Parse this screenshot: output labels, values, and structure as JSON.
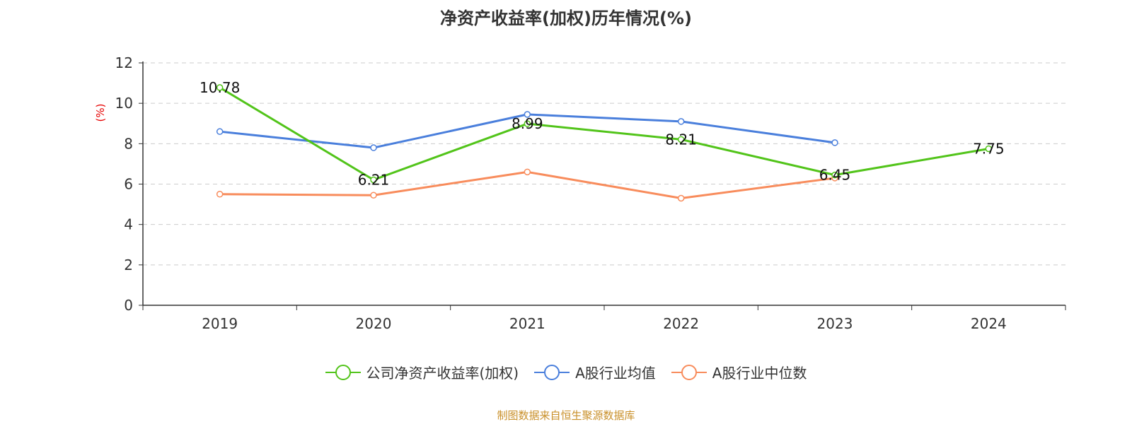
{
  "chart_data": {
    "type": "line",
    "title": "净资产收益率(加权)历年情况(%)",
    "ylabel": "(%)",
    "xlabel": "",
    "categories": [
      "2019",
      "2020",
      "2021",
      "2022",
      "2023",
      "2024"
    ],
    "ylim": [
      0,
      12
    ],
    "yticks": [
      0,
      2,
      4,
      6,
      8,
      10,
      12
    ],
    "grid": true,
    "legend_position": "bottom",
    "series": [
      {
        "name": "公司净资产收益率(加权)",
        "color": "#52c41a",
        "values": [
          10.78,
          6.21,
          8.99,
          8.21,
          6.45,
          7.75
        ],
        "labels": [
          "10.78",
          "6.21",
          "8.99",
          "8.21",
          "6.45",
          "7.75"
        ]
      },
      {
        "name": "A股行业均值",
        "color": "#4a7fdc",
        "values": [
          8.6,
          7.8,
          9.45,
          9.1,
          8.05,
          null
        ]
      },
      {
        "name": "A股行业中位数",
        "color": "#f88c5c",
        "values": [
          5.5,
          5.45,
          6.6,
          5.3,
          6.3,
          null
        ]
      }
    ]
  },
  "source_note": "制图数据来自恒生聚源数据库"
}
